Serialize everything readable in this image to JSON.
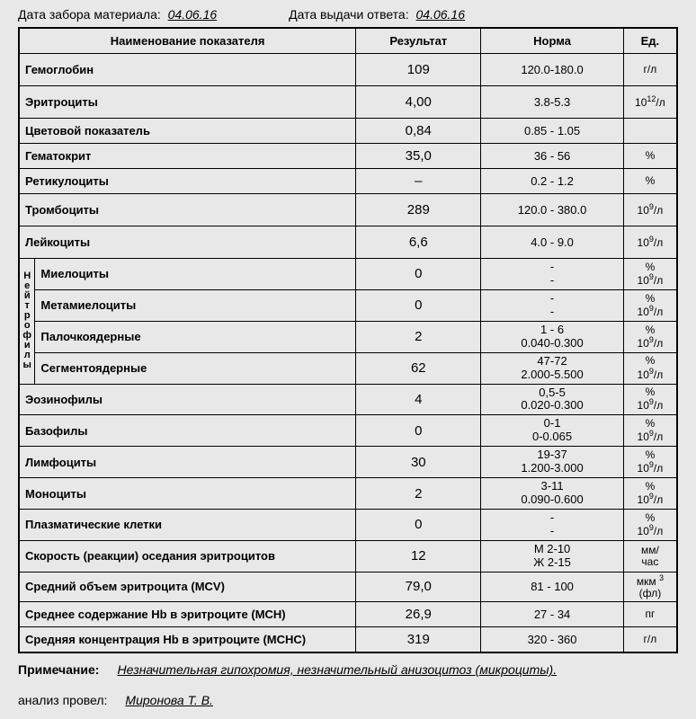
{
  "dates": {
    "collect_label": "Дата забора материала:",
    "collect_value": "04.06.16",
    "result_label": "Дата выдачи ответа:",
    "result_value": "04.06.16"
  },
  "headers": {
    "name": "Наименование показателя",
    "result": "Результат",
    "norm": "Норма",
    "unit": "Ед."
  },
  "neutrophils_label": "Нейтрофилы",
  "rows": [
    {
      "name": "Гемоглобин",
      "result": "109",
      "norm1": "120.0-180.0",
      "norm2": "",
      "unit_html": "г/л",
      "pad": true
    },
    {
      "name": "Эритроциты",
      "result": "4,00",
      "norm1": "3.8-5.3",
      "norm2": "",
      "unit_html": "10<span class='sup'>12</span>/л",
      "pad": true
    },
    {
      "name": "Цветовой показатель",
      "result": "0,84",
      "norm1": "0.85 - 1.05",
      "norm2": "",
      "unit_html": ""
    },
    {
      "name": "Гематокрит",
      "result": "35,0",
      "norm1": "36 - 56",
      "norm2": "",
      "unit_html": "%"
    },
    {
      "name": "Ретикулоциты",
      "result": "–",
      "norm1": "0.2 - 1.2",
      "norm2": "",
      "unit_html": "%"
    },
    {
      "name": "Тромбоциты",
      "result": "289",
      "norm1": "120.0 - 380.0",
      "norm2": "",
      "unit_html": "10<span class='sup'>9</span>/л",
      "pad": true
    },
    {
      "name": "Лейкоциты",
      "result": "6,6",
      "norm1": "4.0 - 9.0",
      "norm2": "",
      "unit_html": "10<span class='sup'>9</span>/л",
      "pad": true
    }
  ],
  "neutro_rows": [
    {
      "name": "Миелоциты",
      "result": "0",
      "norm1": "-",
      "norm2": "-",
      "unit_html": "%<br>10<span class='sup'>9</span>/л"
    },
    {
      "name": "Метамиелоциты",
      "result": "0",
      "norm1": "-",
      "norm2": "-",
      "unit_html": "%<br>10<span class='sup'>9</span>/л"
    },
    {
      "name": "Палочкоядерные",
      "result": "2",
      "norm1": "1 - 6",
      "norm2": "0.040-0.300",
      "unit_html": "%<br>10<span class='sup'>9</span>/л"
    },
    {
      "name": "Сегментоядерные",
      "result": "62",
      "norm1": "47-72",
      "norm2": "2.000-5.500",
      "unit_html": "%<br>10<span class='sup'>9</span>/л"
    }
  ],
  "rows2": [
    {
      "name": "Эозинофилы",
      "result": "4",
      "norm1": "0,5-5",
      "norm2": "0.020-0.300",
      "unit_html": "%<br>10<span class='sup'>9</span>/л"
    },
    {
      "name": "Базофилы",
      "result": "0",
      "norm1": "0-1",
      "norm2": "0-0.065",
      "unit_html": "%<br>10<span class='sup'>9</span>/л"
    },
    {
      "name": "Лимфоциты",
      "result": "30",
      "norm1": "19-37",
      "norm2": "1.200-3.000",
      "unit_html": "%<br>10<span class='sup'>9</span>/л"
    },
    {
      "name": "Моноциты",
      "result": "2",
      "norm1": "3-11",
      "norm2": "0.090-0.600",
      "unit_html": "%<br>10<span class='sup'>9</span>/л"
    },
    {
      "name": "Плазматические клетки",
      "result": "0",
      "norm1": "-",
      "norm2": "-",
      "unit_html": "%<br>10<span class='sup'>9</span>/л"
    },
    {
      "name": "Скорость (реакции) оседания  эритроцитов",
      "result": "12",
      "norm1": "М 2-10",
      "norm2": "Ж 2-15",
      "unit_html": "мм/<br>час"
    },
    {
      "name": "Средний объем  эритроцита (МСV)",
      "result": "79,0",
      "norm1": "81 - 100",
      "norm2": "",
      "unit_html": "мкм <span class='sup'>3</span><br>(фл)"
    },
    {
      "name": "Среднее содержание Нb в эритроците (МСН)",
      "result": "26,9",
      "norm1": "27 - 34",
      "norm2": "",
      "unit_html": "пг"
    },
    {
      "name": "Средняя концентрация Нb в эритроците (МСНС)",
      "result": "319",
      "norm1": "320 - 360",
      "norm2": "",
      "unit_html": "г/л"
    }
  ],
  "footer": {
    "note_label": "Примечание:",
    "note_value": "Незначительная гипохромия, незначительный анизоцитоз (микроциты).",
    "analyst_label": "анализ провел:",
    "analyst_value": "Миронова Т. В."
  }
}
